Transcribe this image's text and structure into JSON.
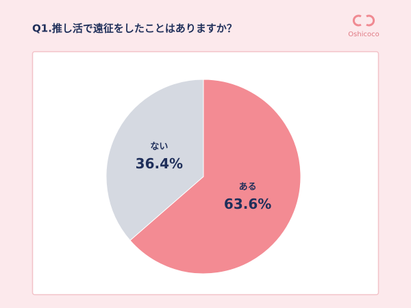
{
  "logo": "Oshicoco",
  "chart_data": {
    "type": "pie",
    "title": "Q1.推し活で遠征をしたことはありますか？",
    "categories": [
      "ある",
      "ない"
    ],
    "values": [
      63.6,
      36.4
    ],
    "value_labels": [
      "63.6%",
      "36.4%"
    ],
    "colors": [
      "#f38b93",
      "#d5d9e1"
    ]
  }
}
